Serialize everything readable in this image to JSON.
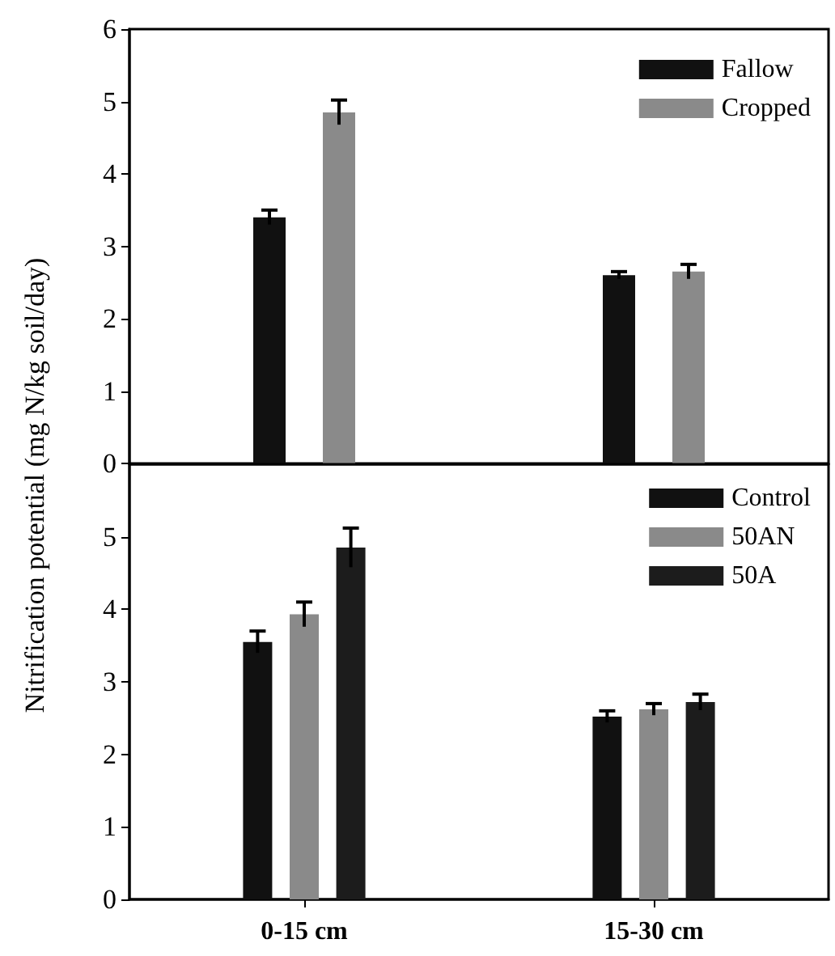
{
  "chart_data": [
    {
      "type": "bar",
      "ylabel": "Nitrification potential (mg N/kg soil/day)",
      "categories": [
        null,
        null
      ],
      "series": [
        {
          "name": "Fallow",
          "color": "#111111",
          "values": [
            3.4,
            2.6
          ],
          "errors": [
            0.1,
            0.05
          ]
        },
        {
          "name": "Cropped",
          "color": "#8a8a8a",
          "values": [
            4.85,
            2.65
          ],
          "errors": [
            0.17,
            0.1
          ]
        }
      ],
      "ylim": [
        0,
        6
      ],
      "yticks": [
        0,
        1,
        2,
        3,
        4,
        5,
        6
      ],
      "tick_labels": "y",
      "legend": "top right",
      "grid": false
    },
    {
      "type": "bar",
      "categories": [
        "0-15 cm",
        "15-30 cm"
      ],
      "series": [
        {
          "name": "Control",
          "color": "#111111",
          "values": [
            3.55,
            2.52
          ],
          "errors": [
            0.15,
            0.08
          ]
        },
        {
          "name": "50AN",
          "color": "#8a8a8a",
          "values": [
            3.93,
            2.62
          ],
          "errors": [
            0.17,
            0.08
          ]
        },
        {
          "name": "50A",
          "color": "#1c1c1c",
          "values": [
            4.85,
            2.72
          ],
          "errors": [
            0.27,
            0.11
          ]
        }
      ],
      "ylim": [
        0,
        6
      ],
      "yticks": [
        0,
        1,
        2,
        3,
        4,
        5
      ],
      "legend": "top right",
      "grid": false
    }
  ]
}
